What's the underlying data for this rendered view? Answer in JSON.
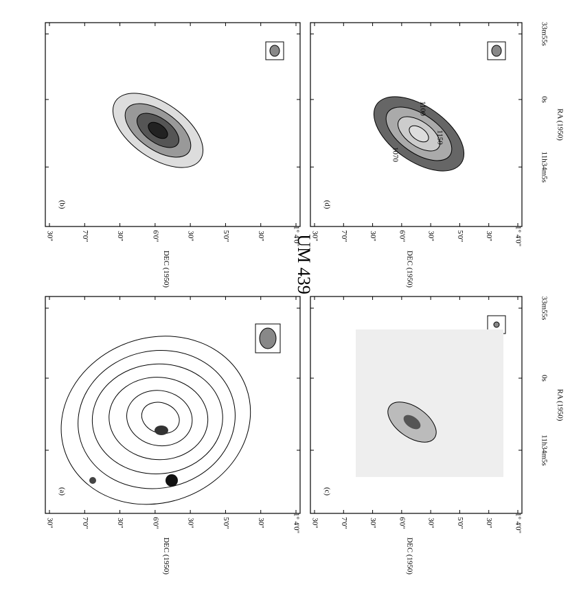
{
  "title": "UM 439",
  "axes": {
    "dec_label": "DEC (1950)",
    "ra_label": "RA (1950)",
    "dec_ticks": [
      "30\"",
      "7'0\"",
      "30\"",
      "6'0\"",
      "30\"",
      "5'0\"",
      "30\"",
      "1° 4'0\""
    ],
    "ra_ticks": [
      "11h34m5s",
      "0s",
      "33m55s"
    ]
  },
  "panels": [
    {
      "label": "(b)"
    },
    {
      "label": "(d)",
      "annotations": [
        "1100",
        "1150",
        "1070"
      ]
    },
    {
      "label": "(a)"
    },
    {
      "label": "(c)"
    }
  ]
}
